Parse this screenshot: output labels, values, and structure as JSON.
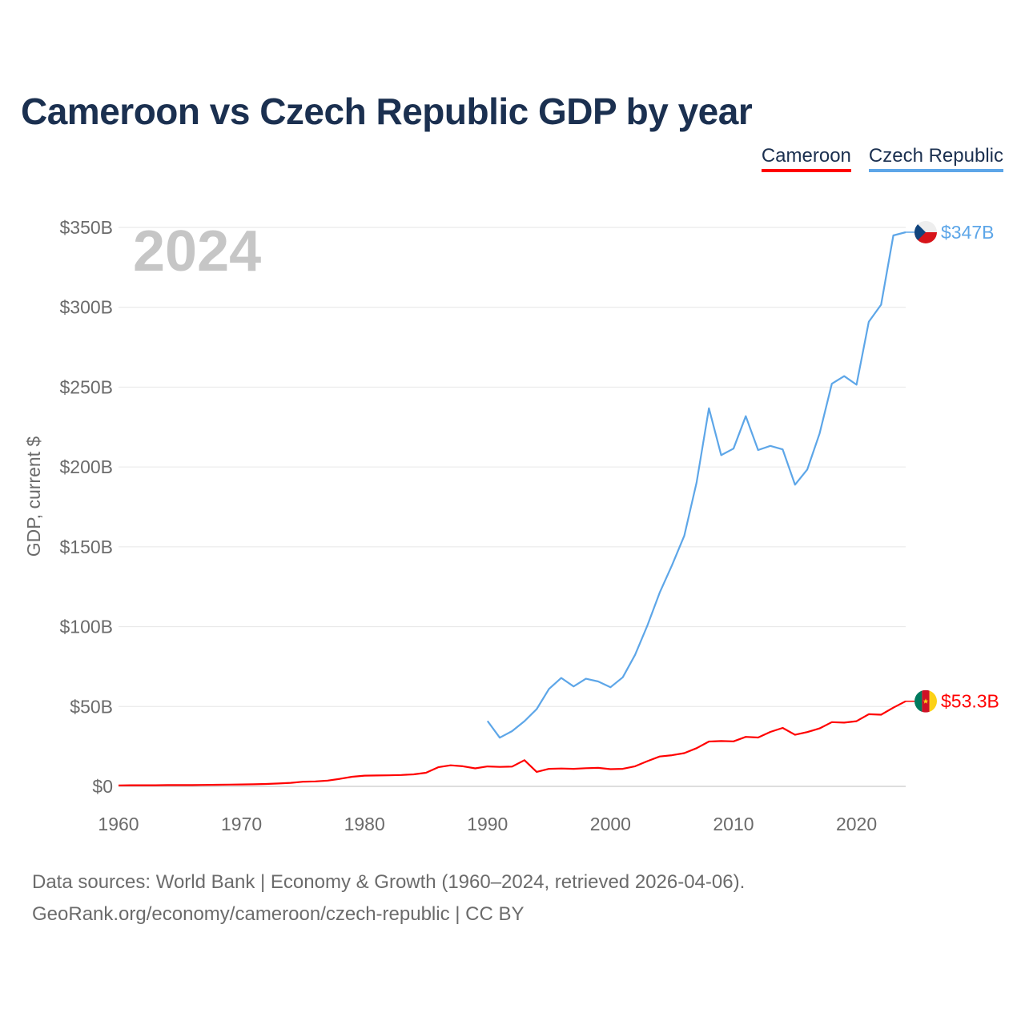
{
  "header": {
    "title": "Cameroon vs Czech Republic GDP by year"
  },
  "legend": [
    {
      "label": "Cameroon",
      "color": "#ff0000"
    },
    {
      "label": "Czech Republic",
      "color": "#5da6e8"
    }
  ],
  "chart_data": {
    "type": "line",
    "title": "Cameroon vs Czech Republic GDP by year",
    "ylabel": "GDP, current $",
    "xlabel": "",
    "watermark_year": "2024",
    "xlim": [
      1960,
      2024
    ],
    "ylim": [
      0,
      350
    ],
    "x_ticks": [
      1960,
      1970,
      1980,
      1990,
      2000,
      2010,
      2020
    ],
    "y_ticks": [
      {
        "value": 0,
        "label": "$0"
      },
      {
        "value": 50,
        "label": "$50B"
      },
      {
        "value": 100,
        "label": "$100B"
      },
      {
        "value": 150,
        "label": "$150B"
      },
      {
        "value": 200,
        "label": "$200B"
      },
      {
        "value": 250,
        "label": "$250B"
      },
      {
        "value": 300,
        "label": "$300B"
      },
      {
        "value": 350,
        "label": "$350B"
      }
    ],
    "grid": true,
    "units": "billions USD",
    "series": [
      {
        "name": "Cameroon",
        "color": "#ff0000",
        "end_label": "$53.3B",
        "flag_icon": "cameroon-flag-icon",
        "x": [
          1960,
          1961,
          1962,
          1963,
          1964,
          1965,
          1966,
          1967,
          1968,
          1969,
          1970,
          1971,
          1972,
          1973,
          1974,
          1975,
          1976,
          1977,
          1978,
          1979,
          1980,
          1981,
          1982,
          1983,
          1984,
          1985,
          1986,
          1987,
          1988,
          1989,
          1990,
          1991,
          1992,
          1993,
          1994,
          1995,
          1996,
          1997,
          1998,
          1999,
          2000,
          2001,
          2002,
          2003,
          2004,
          2005,
          2006,
          2007,
          2008,
          2009,
          2010,
          2011,
          2012,
          2013,
          2014,
          2015,
          2016,
          2017,
          2018,
          2019,
          2020,
          2021,
          2022,
          2023,
          2024
        ],
        "values": [
          0.6,
          0.7,
          0.7,
          0.7,
          0.8,
          0.8,
          0.8,
          0.9,
          1.0,
          1.1,
          1.2,
          1.3,
          1.5,
          1.8,
          2.2,
          2.9,
          3.1,
          3.6,
          4.7,
          6.0,
          6.7,
          6.8,
          6.9,
          7.1,
          7.5,
          8.5,
          12.0,
          13.2,
          12.6,
          11.3,
          12.5,
          12.2,
          12.4,
          16.4,
          9.1,
          11.0,
          11.2,
          11.0,
          11.4,
          11.6,
          10.8,
          11.0,
          12.6,
          15.8,
          18.7,
          19.5,
          20.8,
          23.9,
          28.1,
          28.4,
          28.2,
          31.0,
          30.6,
          34.1,
          36.6,
          32.3,
          34.0,
          36.3,
          40.2,
          39.9,
          40.8,
          45.2,
          44.9,
          49.3,
          53.3
        ]
      },
      {
        "name": "Czech Republic",
        "color": "#5da6e8",
        "end_label": "$347B",
        "flag_icon": "czech-flag-icon",
        "x": [
          1990,
          1991,
          1992,
          1993,
          1994,
          1995,
          1996,
          1997,
          1998,
          1999,
          2000,
          2001,
          2002,
          2003,
          2004,
          2005,
          2006,
          2007,
          2008,
          2009,
          2010,
          2011,
          2012,
          2013,
          2014,
          2015,
          2016,
          2017,
          2018,
          2019,
          2020,
          2021,
          2022,
          2023,
          2024
        ],
        "values": [
          40.9,
          30.5,
          34.6,
          40.8,
          48.4,
          61.0,
          67.9,
          62.6,
          67.4,
          65.7,
          62.1,
          68.3,
          82.4,
          100.8,
          121.3,
          138.5,
          156.9,
          190.3,
          236.8,
          207.4,
          211.5,
          231.8,
          210.6,
          213.2,
          211.0,
          188.9,
          198.4,
          221.0,
          252.1,
          256.9,
          251.5,
          290.9,
          301.6,
          345.0,
          347.0
        ]
      }
    ]
  },
  "footer": {
    "source_line": "Data sources: World Bank | Economy & Growth (1960–2024, retrieved 2026-04-06).",
    "credit_line": "GeoRank.org/economy/cameroon/czech-republic | CC BY"
  }
}
